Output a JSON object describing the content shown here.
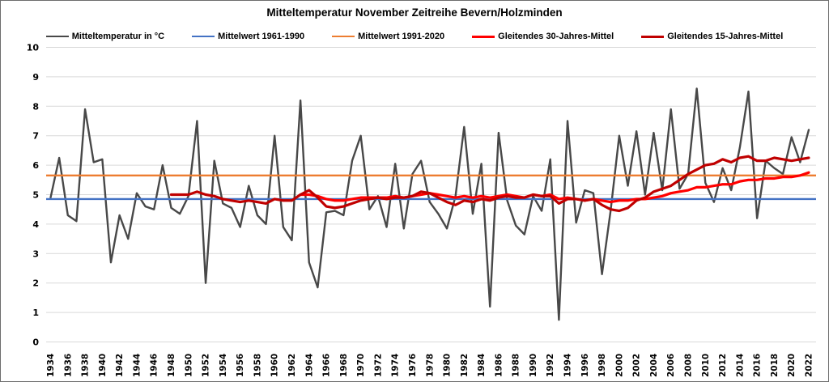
{
  "chart_data": {
    "type": "line",
    "title": "Mitteltemperatur November Zeitreihe Bevern/Holzminden",
    "xlabel": "",
    "ylabel": "",
    "x_axis": {
      "start": 1934,
      "end": 2022,
      "tick_step": 2,
      "tick_label_rotation": -90
    },
    "y_axis": {
      "min": 0,
      "max": 10,
      "tick_step": 1
    },
    "grid": "horizontal",
    "gridline_color": "#d9d9d9",
    "legend_position": "top",
    "series": [
      {
        "name": "Mitteltemperatur in °C",
        "color": "#484848",
        "width": 2.4,
        "type": "line",
        "start_year": 1934,
        "values": [
          4.9,
          6.25,
          4.3,
          4.1,
          7.9,
          6.1,
          6.2,
          2.7,
          4.3,
          3.5,
          5.05,
          4.6,
          4.5,
          6.0,
          4.55,
          4.35,
          4.95,
          7.5,
          2.0,
          6.15,
          4.7,
          4.55,
          3.9,
          5.3,
          4.3,
          4.0,
          7.0,
          3.9,
          3.45,
          8.2,
          2.7,
          1.85,
          4.4,
          4.45,
          4.3,
          6.15,
          7.0,
          4.5,
          4.95,
          3.9,
          6.05,
          3.85,
          5.7,
          6.15,
          4.75,
          4.35,
          3.85,
          4.95,
          7.3,
          4.35,
          6.05,
          1.2,
          7.1,
          4.8,
          3.95,
          3.65,
          4.95,
          4.45,
          6.2,
          0.75,
          7.5,
          4.05,
          5.15,
          5.05,
          2.3,
          4.45,
          7.0,
          5.3,
          7.15,
          5.0,
          7.1,
          5.15,
          7.9,
          5.2,
          5.7,
          8.6,
          5.4,
          4.75,
          5.9,
          5.15,
          6.6,
          8.5,
          4.2,
          6.15,
          5.9,
          5.7,
          6.95,
          6.1,
          7.2
        ]
      },
      {
        "name": "Mittelwert 1961-1990",
        "color": "#4472c4",
        "width": 2.4,
        "type": "hline",
        "value": 4.85
      },
      {
        "name": "Mittelwert 1991-2020",
        "color": "#ed7d31",
        "width": 2.4,
        "type": "hline",
        "value": 5.65
      },
      {
        "name": "Gleitendes 30-Jahres-Mittel",
        "color": "#ff0000",
        "width": 3.2,
        "type": "line",
        "start_year": 1963,
        "values": [
          5.0,
          5.0,
          4.95,
          4.85,
          4.8,
          4.8,
          4.85,
          4.9,
          4.9,
          4.9,
          4.9,
          4.95,
          4.9,
          4.95,
          5.0,
          5.05,
          5.0,
          4.95,
          4.9,
          4.95,
          4.9,
          4.95,
          4.9,
          4.95,
          5.0,
          4.95,
          4.9,
          5.0,
          4.95,
          5.0,
          4.85,
          4.9,
          4.85,
          4.8,
          4.85,
          4.8,
          4.75,
          4.8,
          4.8,
          4.85,
          4.85,
          4.9,
          4.95,
          5.05,
          5.1,
          5.15,
          5.25,
          5.25,
          5.3,
          5.35,
          5.35,
          5.45,
          5.5,
          5.5,
          5.55,
          5.55,
          5.6,
          5.6,
          5.65,
          5.75
        ]
      },
      {
        "name": "Gleitendes 15-Jahres-Mittel",
        "color": "#c00000",
        "width": 3.2,
        "type": "line",
        "start_year": 1948,
        "values": [
          5.0,
          5.0,
          5.0,
          5.1,
          5.0,
          4.95,
          4.85,
          4.8,
          4.75,
          4.8,
          4.75,
          4.7,
          4.85,
          4.8,
          4.8,
          5.0,
          5.15,
          4.9,
          4.6,
          4.55,
          4.6,
          4.7,
          4.8,
          4.85,
          4.9,
          4.85,
          4.9,
          4.9,
          4.95,
          5.1,
          5.05,
          4.9,
          4.75,
          4.65,
          4.8,
          4.75,
          4.85,
          4.8,
          4.9,
          4.95,
          4.9,
          4.9,
          5.0,
          4.95,
          4.95,
          4.7,
          4.85,
          4.85,
          4.8,
          4.85,
          4.65,
          4.5,
          4.45,
          4.55,
          4.8,
          4.9,
          5.1,
          5.2,
          5.3,
          5.5,
          5.7,
          5.85,
          6.0,
          6.05,
          6.2,
          6.1,
          6.25,
          6.3,
          6.15,
          6.15,
          6.25,
          6.2,
          6.15,
          6.2,
          6.25
        ]
      }
    ]
  }
}
